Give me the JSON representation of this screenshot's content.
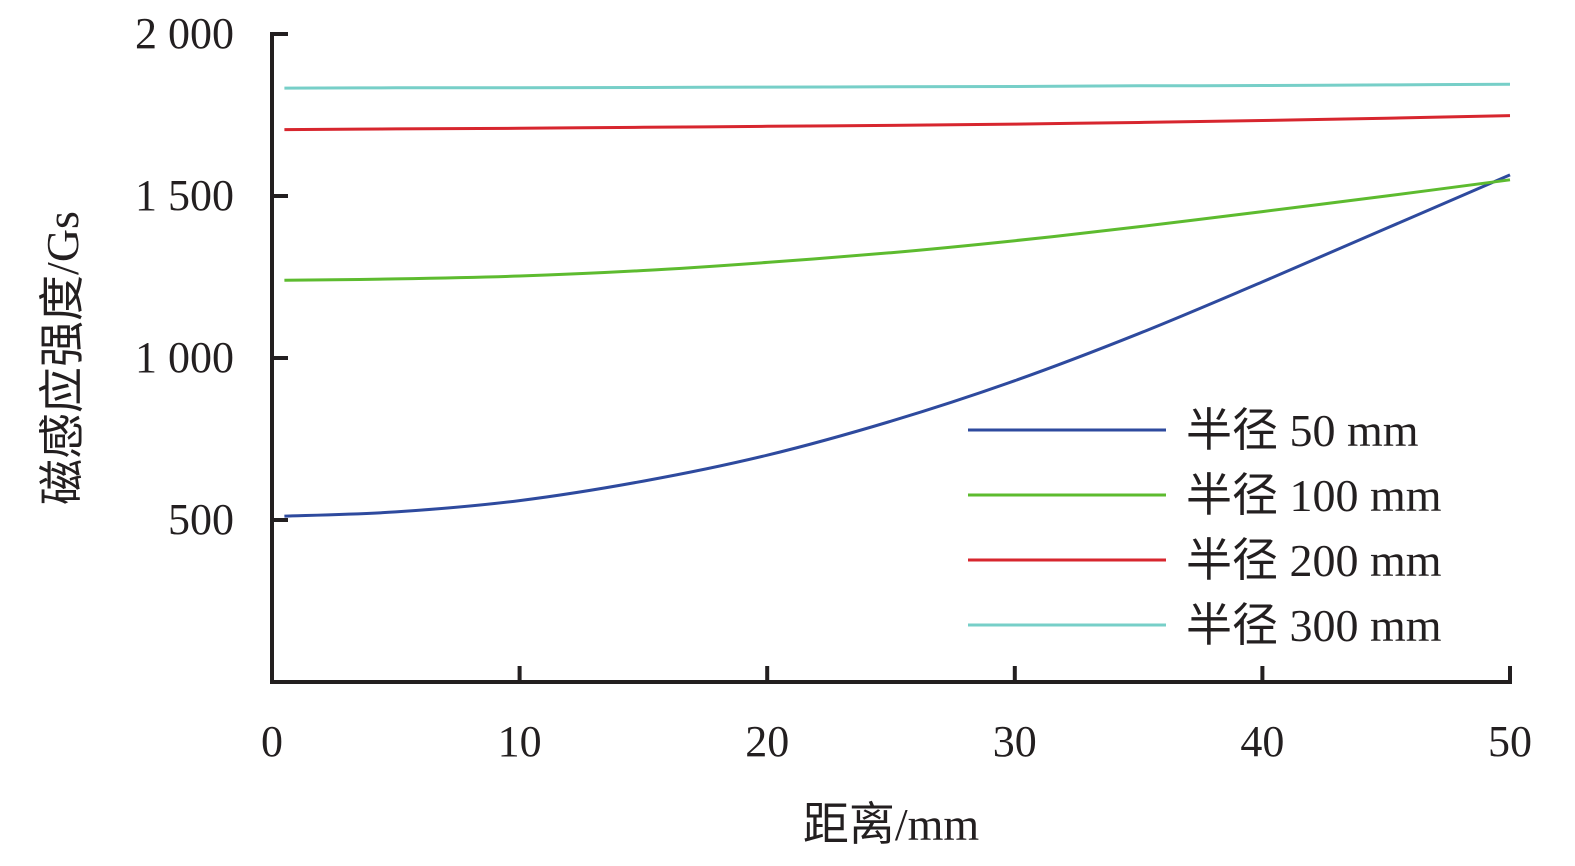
{
  "chart_data": {
    "type": "line",
    "xlabel": "距离/mm",
    "ylabel": "磁感应强度/Gs",
    "xlim": [
      0,
      50
    ],
    "ylim": [
      0,
      2000
    ],
    "x_ticks": [
      0,
      10,
      20,
      30,
      40,
      50
    ],
    "x_tick_labels": [
      "0",
      "10",
      "20",
      "30",
      "40",
      "50"
    ],
    "y_ticks": [
      500,
      1000,
      1500,
      2000
    ],
    "y_tick_labels": [
      "500",
      "1 000",
      "1 500",
      "2 000"
    ],
    "grid": false,
    "legend_position": "bottom-right",
    "x": [
      0.5,
      5,
      10,
      15,
      20,
      25,
      30,
      35,
      40,
      45,
      50
    ],
    "series": [
      {
        "name": "半径 50 mm",
        "color": "#2e4a9e",
        "values": [
          512,
          525,
          560,
          620,
          700,
          805,
          930,
          1075,
          1235,
          1400,
          1565
        ]
      },
      {
        "name": "半径 100 mm",
        "color": "#5dbb2f",
        "values": [
          1240,
          1244,
          1253,
          1270,
          1295,
          1325,
          1362,
          1405,
          1452,
          1500,
          1550
        ]
      },
      {
        "name": "半径 200 mm",
        "color": "#d7262e",
        "values": [
          1705,
          1707,
          1709,
          1712,
          1715,
          1718,
          1722,
          1727,
          1733,
          1740,
          1748
        ]
      },
      {
        "name": "半径 300 mm",
        "color": "#77cfc8",
        "values": [
          1833,
          1834,
          1834,
          1835,
          1836,
          1837,
          1838,
          1840,
          1841,
          1843,
          1845
        ]
      }
    ]
  }
}
